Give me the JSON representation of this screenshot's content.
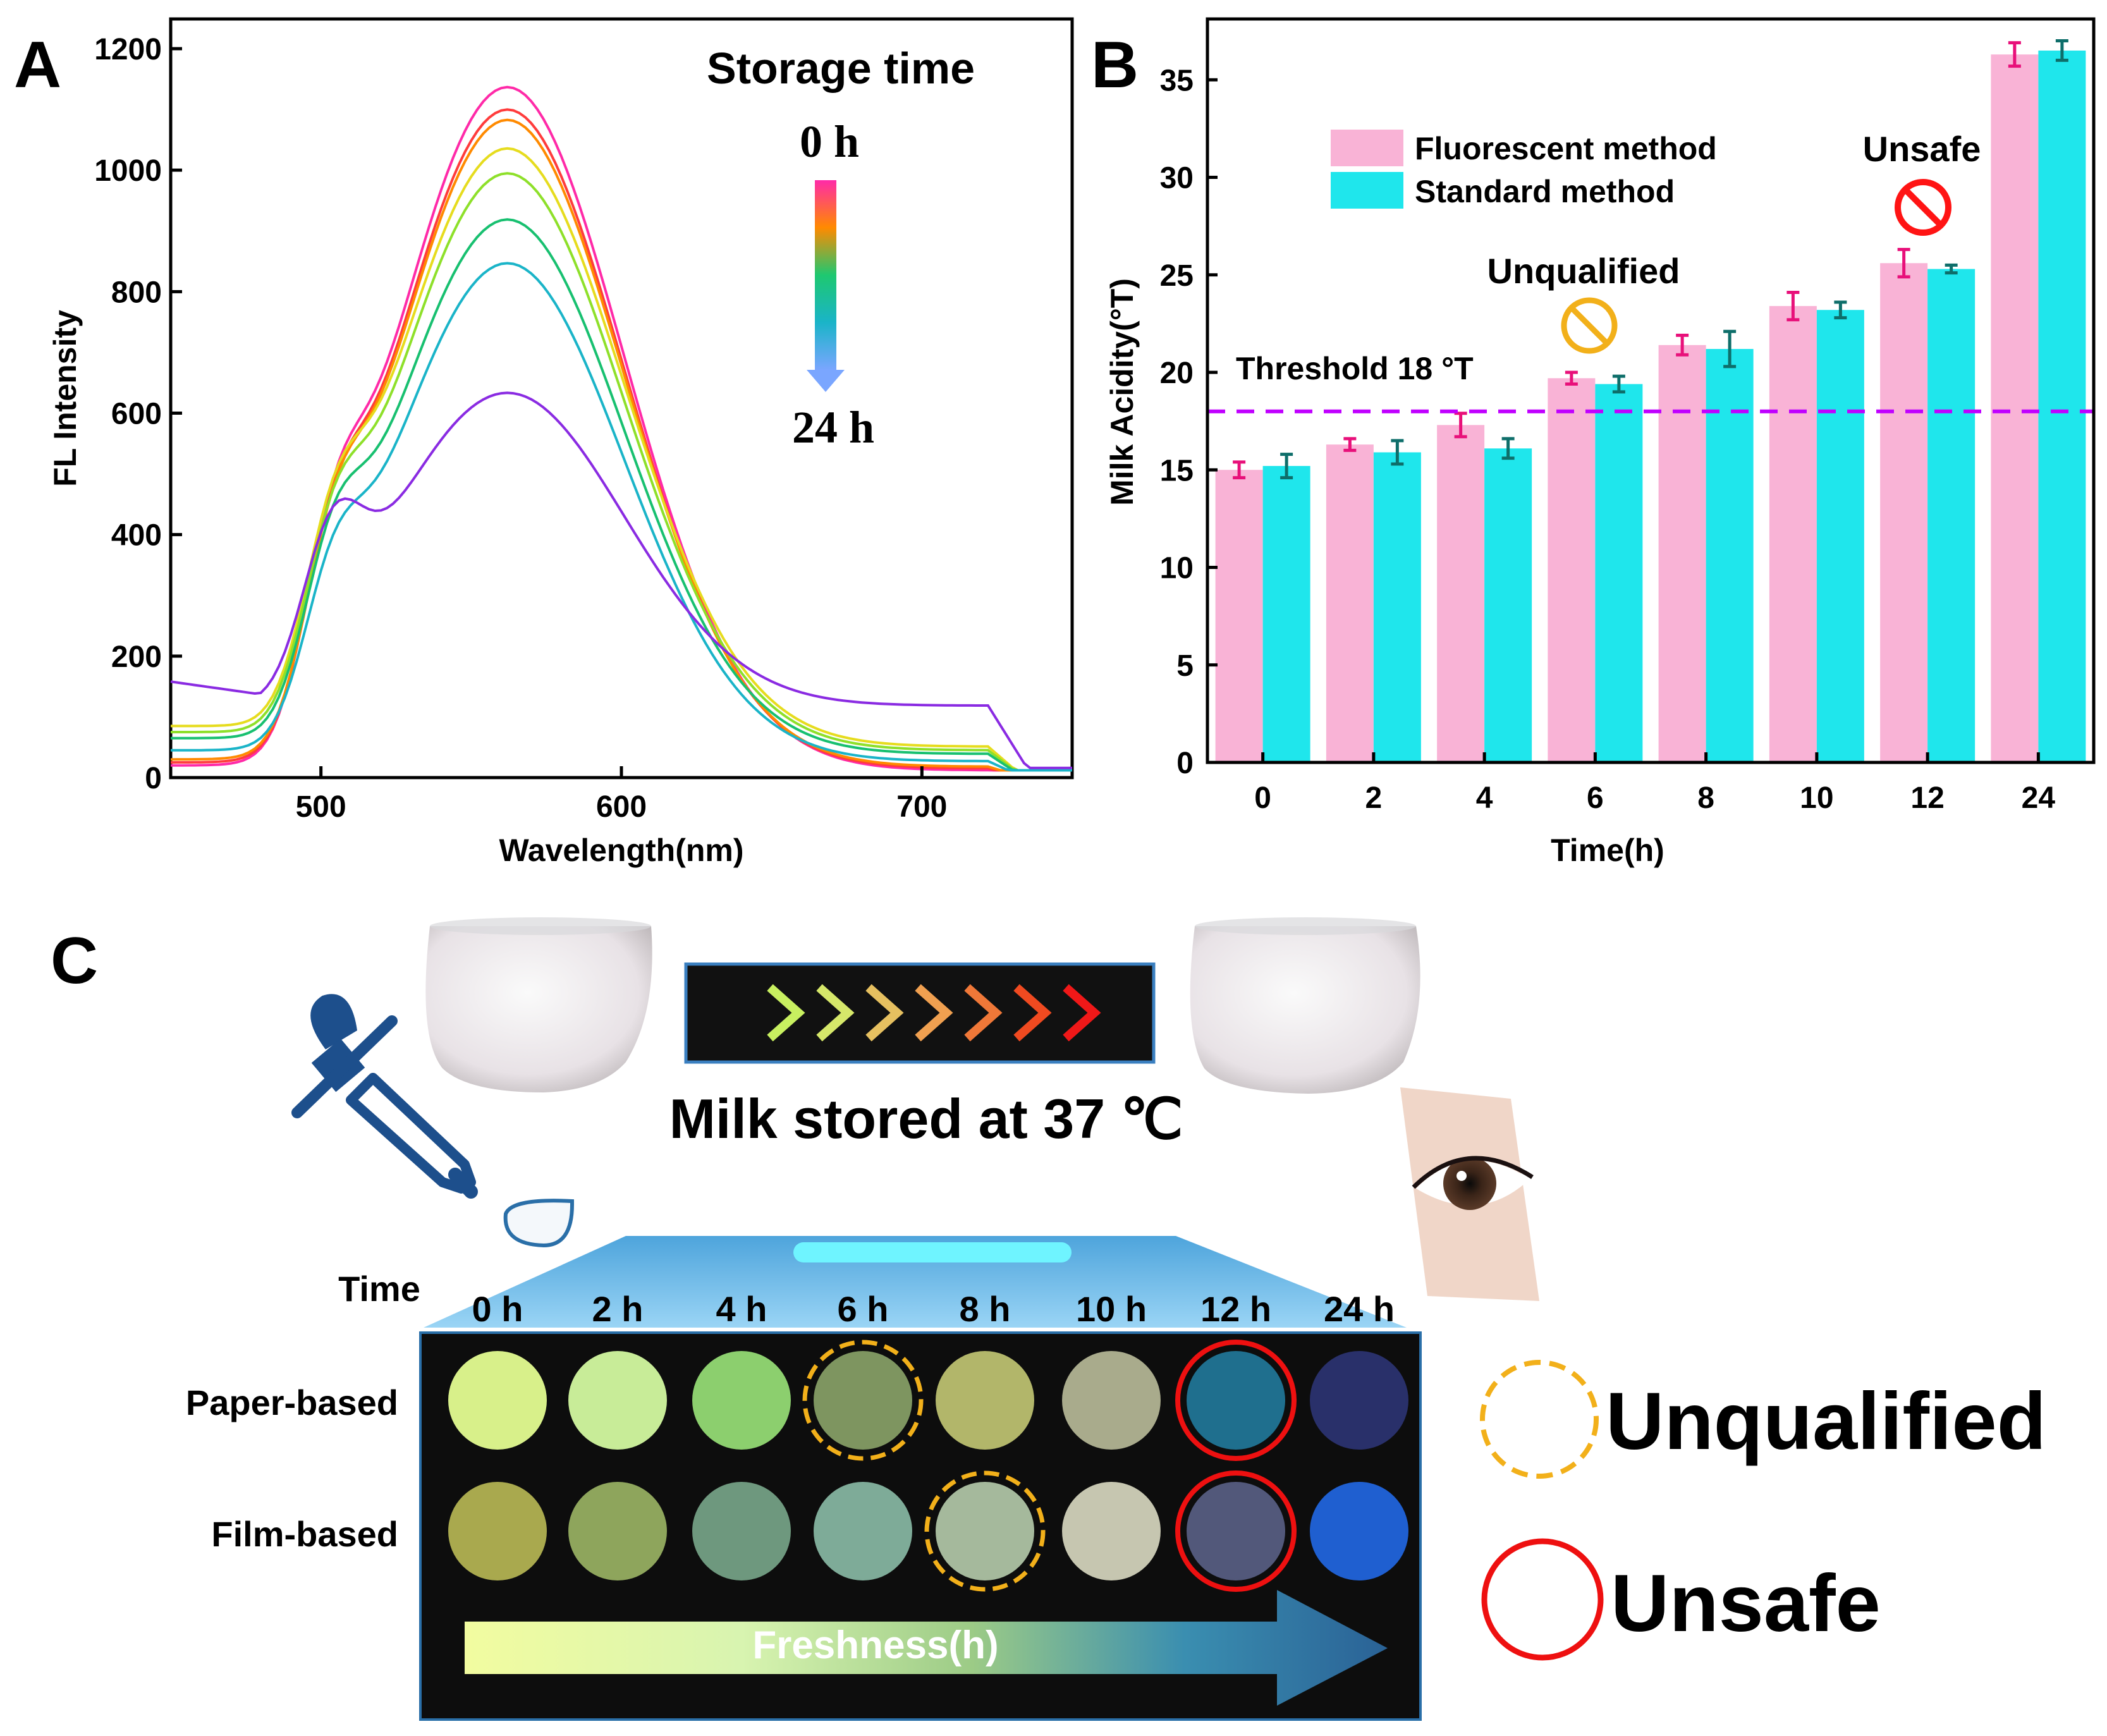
{
  "panels": {
    "a_label": "A",
    "b_label": "B",
    "c_label": "C"
  },
  "chart_data": [
    {
      "type": "line",
      "xlabel": "Wavelength(nm)",
      "ylabel": "FL Intensity",
      "xlim": [
        450,
        750
      ],
      "ylim": [
        0,
        1200
      ],
      "x_ticks": [
        "500",
        "600",
        "700"
      ],
      "y_ticks": [
        "0",
        "200",
        "400",
        "600",
        "800",
        "1000",
        "1200"
      ],
      "legend": {
        "title": "Storage time",
        "top": "0 h",
        "bottom": "24 h",
        "placement": "top-right"
      },
      "series": [
        {
          "color": "#ff2aa8",
          "peak": 1125,
          "shoulder": 360,
          "tail": 20
        },
        {
          "color": "#ff3c3c",
          "peak": 1085,
          "shoulder": 355,
          "tail": 25
        },
        {
          "color": "#ff8a00",
          "peak": 1065,
          "shoulder": 350,
          "tail": 30
        },
        {
          "color": "#e6dc1e",
          "peak": 985,
          "shoulder": 345,
          "tail": 85
        },
        {
          "color": "#8ee02a",
          "peak": 950,
          "shoulder": 340,
          "tail": 75
        },
        {
          "color": "#18c070",
          "peak": 880,
          "shoulder": 335,
          "tail": 65
        },
        {
          "color": "#1ab4c8",
          "peak": 820,
          "shoulder": 300,
          "tail": 45
        },
        {
          "color": "#8a2be2",
          "peak": 515,
          "shoulder": 365,
          "tail": 158
        }
      ]
    },
    {
      "type": "bar",
      "xlabel": "Time(h)",
      "ylabel": "Milk Acidity(°T)",
      "ylim": [
        0,
        37
      ],
      "categories": [
        "0",
        "2",
        "4",
        "6",
        "8",
        "10",
        "12",
        "24"
      ],
      "y_ticks": [
        "0",
        "5",
        "10",
        "15",
        "20",
        "25",
        "30",
        "35"
      ],
      "series": [
        {
          "name": "Fluorescent method",
          "color": "#f9b3d6",
          "err_color": "#e8107a",
          "values": [
            15.0,
            16.3,
            17.3,
            19.7,
            21.4,
            23.4,
            25.6,
            36.3
          ],
          "errors": [
            0.4,
            0.3,
            0.6,
            0.3,
            0.5,
            0.7,
            0.7,
            0.6
          ]
        },
        {
          "name": "Standard method",
          "color": "#1fe6ec",
          "err_color": "#0e6e6a",
          "values": [
            15.2,
            15.9,
            16.1,
            19.4,
            21.2,
            23.2,
            25.3,
            36.5
          ],
          "errors": [
            0.6,
            0.6,
            0.5,
            0.4,
            0.9,
            0.4,
            0.2,
            0.5
          ]
        }
      ],
      "threshold": {
        "value": 18,
        "label": "Threshold 18 °T",
        "color": "#c000ff"
      },
      "annotations": {
        "unqualified": "Unqualified",
        "unsafe": "Unsafe"
      }
    }
  ],
  "panel_c": {
    "milk_caption": "Milk stored at 37 ℃",
    "time_label": "Time",
    "time_points": [
      "0 h",
      "2 h",
      "4 h",
      "6 h",
      "8 h",
      "10 h",
      "12 h",
      "24 h"
    ],
    "row_labels": [
      "Paper-based",
      "Film-based"
    ],
    "paper_colors": [
      "#d8f08a",
      "#c8ec98",
      "#8ccf6e",
      "#7e9560",
      "#b2b66a",
      "#a9ab8c",
      "#1f6f8e",
      "#29306a"
    ],
    "film_colors": [
      "#a9a94e",
      "#8ea55c",
      "#6e987e",
      "#7eab98",
      "#a5b99c",
      "#c6c6b0",
      "#52587a",
      "#1f5fd0"
    ],
    "paper_marks": [
      "",
      "",
      "",
      "unqualified",
      "",
      "",
      "unsafe",
      ""
    ],
    "film_marks": [
      "",
      "",
      "",
      "",
      "unqualified",
      "",
      "unsafe",
      ""
    ],
    "freshness_label": "Freshness(h)",
    "legend_unqualified": "Unqualified",
    "legend_unsafe": "Unsafe",
    "arrow_colors": [
      "#c8f060",
      "#d6e86a",
      "#e6c060",
      "#f0a050",
      "#f07838",
      "#f04a20",
      "#f01818"
    ]
  }
}
